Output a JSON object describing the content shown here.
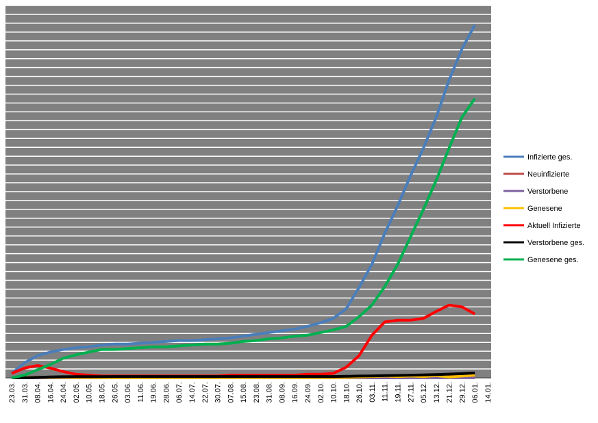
{
  "chart_data": {
    "type": "line",
    "categories": [
      "23.03.",
      "31.03.",
      "08.04.",
      "16.04.",
      "24.04.",
      "02.05.",
      "10.05.",
      "18.05.",
      "26.05.",
      "03.06.",
      "11.06.",
      "19.06.",
      "28.06.",
      "06.07.",
      "14.07.",
      "22.07.",
      "30.07.",
      "07.08.",
      "15.08.",
      "23.08.",
      "31.08.",
      "08.09.",
      "16.09.",
      "24.09.",
      "02.10.",
      "10.10.",
      "18.10.",
      "26.10.",
      "03.11.",
      "11.11.",
      "19.11.",
      "27.11.",
      "05.12.",
      "13.12.",
      "21.12.",
      "29.12.",
      "06.01.",
      "14.01."
    ],
    "series": [
      {
        "name": "Infizierte ges.",
        "color": "#4a7ebb",
        "values": [
          0.5,
          1.7,
          2.5,
          2.9,
          3.2,
          3.4,
          3.5,
          3.7,
          3.8,
          3.8,
          3.9,
          4.0,
          4.1,
          4.2,
          4.2,
          4.3,
          4.4,
          4.5,
          4.7,
          4.9,
          5.1,
          5.3,
          5.5,
          5.8,
          6.2,
          6.7,
          7.8,
          10.2,
          12.8,
          16.3,
          19.4,
          22.8,
          25.9,
          29.4,
          33.6,
          37.1,
          39.8,
          null
        ]
      },
      {
        "name": "Neuinfizierte",
        "color": "#be4b48",
        "values": [
          0.05,
          0.05,
          0.05,
          0.05,
          0.05,
          0.05,
          0.05,
          0.05,
          0.05,
          0.05,
          0.05,
          0.05,
          0.05,
          0.05,
          0.05,
          0.05,
          0.05,
          0.05,
          0.05,
          0.05,
          0.05,
          0.05,
          0.05,
          0.05,
          0.05,
          0.05,
          0.1,
          0.15,
          0.2,
          0.2,
          0.2,
          0.2,
          0.25,
          0.25,
          0.3,
          0.25,
          0.3,
          null
        ]
      },
      {
        "name": "Verstorbene",
        "color": "#7d60a0",
        "values": [
          0,
          0,
          0,
          0,
          0,
          0,
          0,
          0,
          0,
          0,
          0,
          0,
          0,
          0,
          0,
          0,
          0,
          0,
          0,
          0,
          0,
          0,
          0,
          0,
          0,
          0,
          0,
          0,
          0,
          0,
          0,
          0.01,
          0.01,
          0.01,
          0.01,
          0.01,
          0.01,
          null
        ]
      },
      {
        "name": "Genesene",
        "color": "#ffc000",
        "values": [
          0,
          0.02,
          0.05,
          0.05,
          0.05,
          0.03,
          0.03,
          0.02,
          0.02,
          0.02,
          0.02,
          0.02,
          0.02,
          0.02,
          0.02,
          0.02,
          0.02,
          0.02,
          0.02,
          0.02,
          0.02,
          0.02,
          0.02,
          0.02,
          0.03,
          0.03,
          0.05,
          0.1,
          0.15,
          0.2,
          0.15,
          0.2,
          0.15,
          0.25,
          0.1,
          0.2,
          0.3,
          null
        ]
      },
      {
        "name": "Aktuell Infizierte",
        "color": "#ff0000",
        "values": [
          0.5,
          1.1,
          1.4,
          1.1,
          0.7,
          0.4,
          0.3,
          0.2,
          0.2,
          0.2,
          0.2,
          0.2,
          0.2,
          0.2,
          0.2,
          0.2,
          0.2,
          0.3,
          0.3,
          0.3,
          0.3,
          0.3,
          0.3,
          0.4,
          0.4,
          0.5,
          1.2,
          2.5,
          4.8,
          6.3,
          6.5,
          6.5,
          6.7,
          7.5,
          8.2,
          8.0,
          7.2,
          null
        ]
      },
      {
        "name": "Verstorbene ges.",
        "color": "#000000",
        "values": [
          0,
          0,
          0.05,
          0.1,
          0.12,
          0.13,
          0.14,
          0.14,
          0.15,
          0.15,
          0.15,
          0.15,
          0.15,
          0.15,
          0.15,
          0.15,
          0.15,
          0.15,
          0.15,
          0.15,
          0.15,
          0.15,
          0.15,
          0.15,
          0.15,
          0.15,
          0.17,
          0.2,
          0.22,
          0.25,
          0.27,
          0.3,
          0.33,
          0.37,
          0.42,
          0.47,
          0.55,
          null
        ]
      },
      {
        "name": "Genesene ges.",
        "color": "#00b050",
        "values": [
          0,
          0.3,
          0.9,
          1.5,
          2.2,
          2.6,
          2.9,
          3.2,
          3.2,
          3.3,
          3.4,
          3.5,
          3.5,
          3.6,
          3.7,
          3.8,
          3.8,
          3.9,
          4.1,
          4.2,
          4.4,
          4.5,
          4.7,
          4.8,
          5.1,
          5.4,
          5.8,
          6.9,
          8.2,
          10.3,
          12.8,
          15.9,
          19.0,
          22.3,
          25.9,
          29.4,
          31.5,
          null
        ]
      }
    ],
    "ylim": [
      0,
      42
    ],
    "yticks": [
      0,
      1,
      2,
      3,
      4,
      5,
      6,
      7,
      8,
      9,
      10,
      11,
      12,
      13,
      14,
      15,
      16,
      17,
      18,
      19,
      20,
      21,
      22,
      23,
      24,
      25,
      26,
      27,
      28,
      29,
      30,
      31,
      32,
      33,
      34,
      35,
      36,
      37,
      38,
      39,
      40,
      41,
      42
    ],
    "grid": true,
    "legend": "right",
    "background": "#808080"
  }
}
